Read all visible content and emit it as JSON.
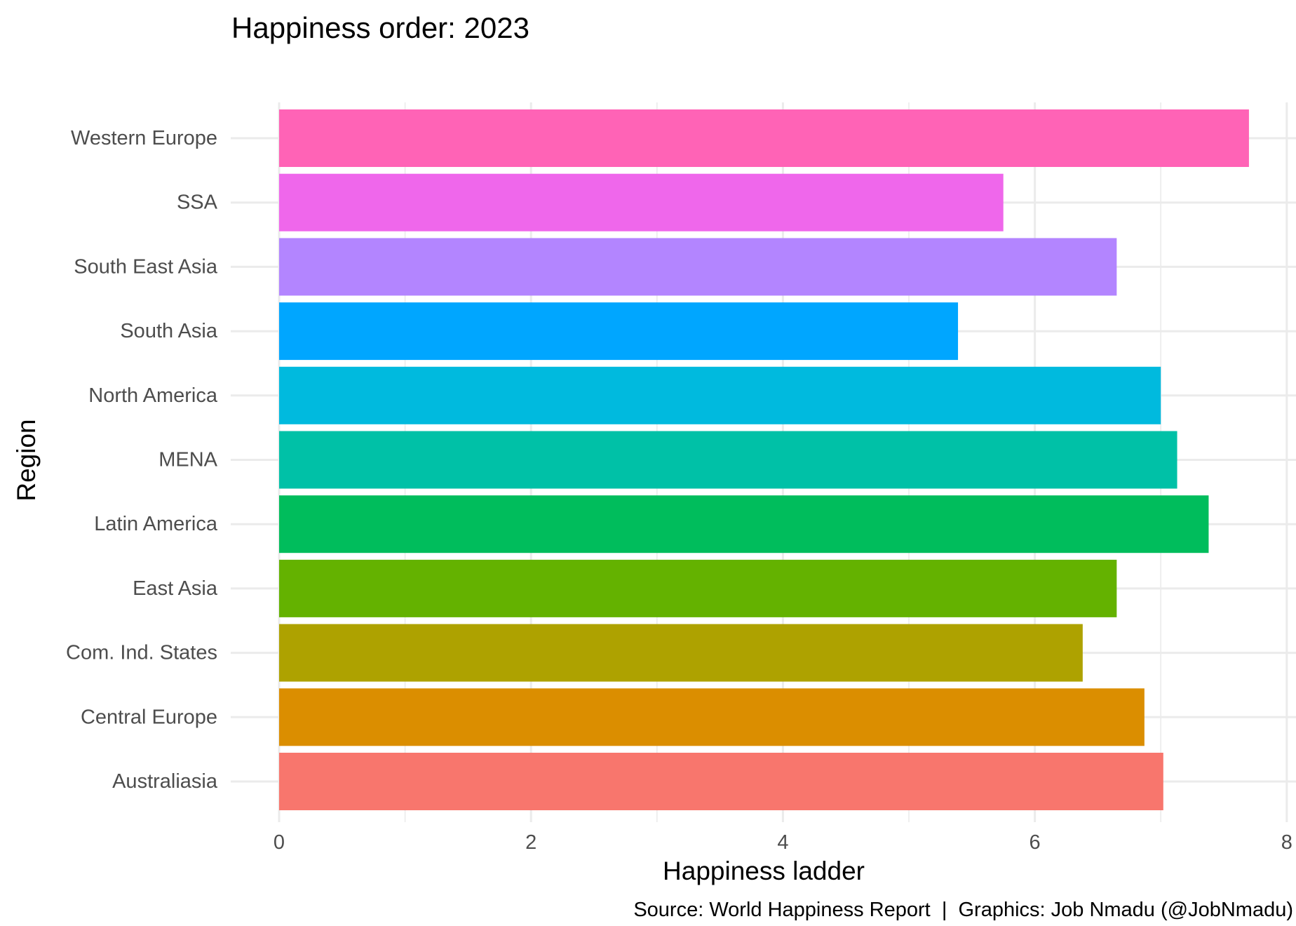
{
  "chart_data": {
    "type": "bar",
    "orientation": "horizontal",
    "title": "Happiness order: 2023",
    "xlabel": "Happiness ladder",
    "ylabel": "Region",
    "caption": "Source: World Happiness Report  |  Graphics: Job Nmadu (@JobNmadu)",
    "xlim": [
      0,
      8
    ],
    "x_ticks": [
      0,
      2,
      4,
      6,
      8
    ],
    "grid": true,
    "legend": "none",
    "categories": [
      "Australiasia",
      "Central Europe",
      "Com. Ind. States",
      "East Asia",
      "Latin America",
      "MENA",
      "North America",
      "South Asia",
      "South East Asia",
      "SSA",
      "Western Europe"
    ],
    "values": [
      7.02,
      6.87,
      6.38,
      6.65,
      7.38,
      7.13,
      7.0,
      5.39,
      6.65,
      5.75,
      7.7
    ],
    "colors": [
      "#F8766D",
      "#DB8E00",
      "#AEA200",
      "#64B200",
      "#00BD5C",
      "#00C1A7",
      "#00BADE",
      "#00A6FF",
      "#B385FF",
      "#EF67EB",
      "#FF63B6"
    ]
  }
}
